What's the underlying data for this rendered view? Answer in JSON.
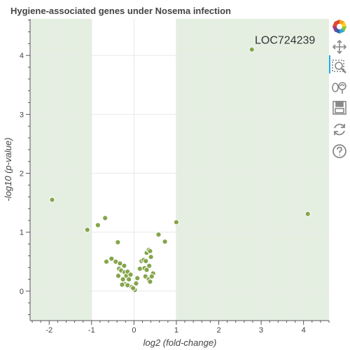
{
  "chart_data": {
    "type": "scatter",
    "title": "Hygiene-associated genes under Nosema infection",
    "xlabel": "log2 (fold-change)",
    "ylabel": "-log10 (p-value)",
    "xlim": [
      -2.45,
      4.6
    ],
    "ylim": [
      -0.5,
      4.62
    ],
    "x_ticks": [
      -2,
      -1,
      0,
      1,
      2,
      3,
      4
    ],
    "y_ticks": [
      0,
      1,
      2,
      3,
      4
    ],
    "grid": true,
    "shaded_x_regions": [
      [
        -2.45,
        -1
      ],
      [
        1,
        4.6
      ]
    ],
    "colors": {
      "point_fill": "#85a54b",
      "point_stroke": "#ffffff",
      "shade": "#e4efe2",
      "grid": "#e8e8e8",
      "axis": "#555555"
    },
    "points": [
      {
        "x": 2.78,
        "y": 4.1
      },
      {
        "x": 4.1,
        "y": 1.31
      },
      {
        "x": -1.93,
        "y": 1.55
      },
      {
        "x": -1.1,
        "y": 1.04
      },
      {
        "x": -0.85,
        "y": 1.12
      },
      {
        "x": -0.68,
        "y": 1.24
      },
      {
        "x": -0.38,
        "y": 0.83
      },
      {
        "x": 1.0,
        "y": 1.17
      },
      {
        "x": 0.58,
        "y": 0.96
      },
      {
        "x": 0.73,
        "y": 0.84
      },
      {
        "x": -0.65,
        "y": 0.5
      },
      {
        "x": -0.53,
        "y": 0.55
      },
      {
        "x": -0.43,
        "y": 0.5
      },
      {
        "x": -0.33,
        "y": 0.47
      },
      {
        "x": -0.35,
        "y": 0.38
      },
      {
        "x": -0.3,
        "y": 0.35
      },
      {
        "x": -0.23,
        "y": 0.43
      },
      {
        "x": -0.22,
        "y": 0.32
      },
      {
        "x": -0.18,
        "y": 0.26
      },
      {
        "x": -0.15,
        "y": 0.33
      },
      {
        "x": -0.12,
        "y": 0.2
      },
      {
        "x": -0.08,
        "y": 0.28
      },
      {
        "x": -0.37,
        "y": 0.26
      },
      {
        "x": -0.26,
        "y": 0.2
      },
      {
        "x": -0.22,
        "y": 0.12
      },
      {
        "x": -0.28,
        "y": 0.11
      },
      {
        "x": -0.15,
        "y": 0.1
      },
      {
        "x": -0.05,
        "y": 0.07
      },
      {
        "x": 0.02,
        "y": 0.02
      },
      {
        "x": -0.02,
        "y": 0.05
      },
      {
        "x": 0.05,
        "y": 0.13
      },
      {
        "x": 0.08,
        "y": 0.22
      },
      {
        "x": 0.14,
        "y": 0.38
      },
      {
        "x": 0.18,
        "y": 0.51
      },
      {
        "x": 0.23,
        "y": 0.53
      },
      {
        "x": 0.25,
        "y": 0.39
      },
      {
        "x": 0.28,
        "y": 0.51
      },
      {
        "x": 0.3,
        "y": 0.65
      },
      {
        "x": 0.35,
        "y": 0.7
      },
      {
        "x": 0.38,
        "y": 0.68
      },
      {
        "x": 0.4,
        "y": 0.58
      },
      {
        "x": 0.36,
        "y": 0.43
      },
      {
        "x": 0.3,
        "y": 0.36
      },
      {
        "x": 0.27,
        "y": 0.25
      },
      {
        "x": 0.35,
        "y": 0.2
      },
      {
        "x": 0.45,
        "y": 0.3
      },
      {
        "x": 0.42,
        "y": 0.25
      },
      {
        "x": 0.38,
        "y": 0.16
      }
    ],
    "annotations": [
      {
        "text": "LOC724239",
        "x": 2.85,
        "y": 4.2
      }
    ]
  },
  "toolbar": {
    "tools": [
      {
        "name": "bokeh-logo"
      },
      {
        "name": "pan-tool-icon",
        "active": true
      },
      {
        "name": "box-zoom-tool-icon"
      },
      {
        "name": "wheel-zoom-tool-icon"
      },
      {
        "name": "save-tool-icon"
      },
      {
        "name": "reset-tool-icon"
      },
      {
        "name": "help-tool-icon"
      }
    ]
  }
}
